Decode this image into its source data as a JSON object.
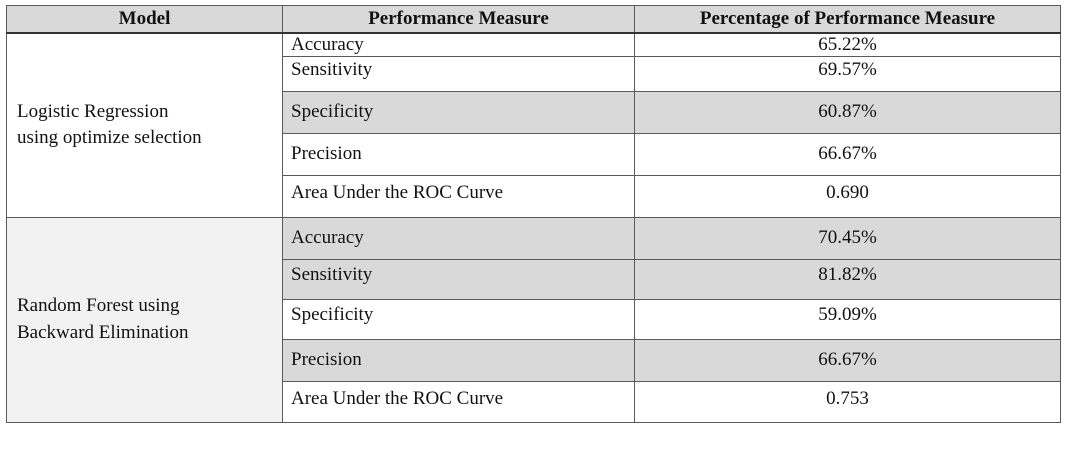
{
  "table": {
    "headers": [
      "Model",
      "Performance Measure",
      "Percentage of Performance Measure"
    ],
    "groups": [
      {
        "model_line1": "Logistic Regression",
        "model_line2": "using optimize selection",
        "rows": [
          {
            "measure": "Accuracy",
            "value": "65.22%"
          },
          {
            "measure": "Sensitivity",
            "value": "69.57%"
          },
          {
            "measure": "Specificity",
            "value": "60.87%"
          },
          {
            "measure": "Precision",
            "value": "66.67%"
          },
          {
            "measure": "Area Under the ROC Curve",
            "value": "0.690"
          }
        ]
      },
      {
        "model_line1": "Random Forest using",
        "model_line2": "Backward Elimination",
        "rows": [
          {
            "measure": "Accuracy",
            "value": "70.45%"
          },
          {
            "measure": "Sensitivity",
            "value": "81.82%"
          },
          {
            "measure": "Specificity",
            "value": "59.09%"
          },
          {
            "measure": "Precision",
            "value": "66.67%"
          },
          {
            "measure": "Area Under the ROC Curve",
            "value": "0.753"
          }
        ]
      }
    ]
  }
}
